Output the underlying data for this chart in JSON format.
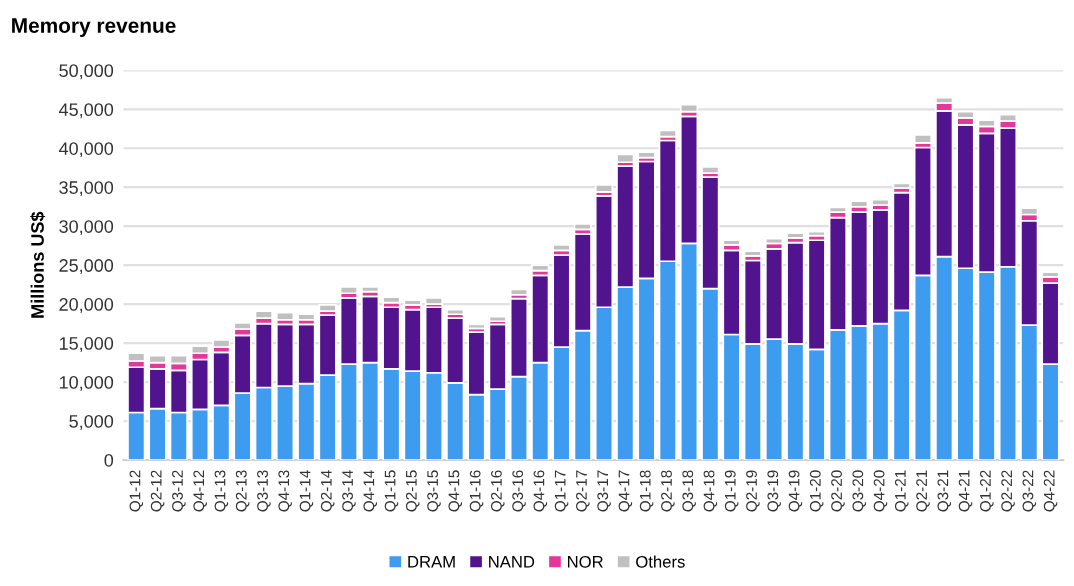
{
  "chart_data": {
    "type": "bar",
    "stacked": true,
    "title": "Memory revenue",
    "ylabel": "Millions US$",
    "categories": [
      "Q1-12",
      "Q2-12",
      "Q3-12",
      "Q4-12",
      "Q1-13",
      "Q2-13",
      "Q3-13",
      "Q4-13",
      "Q1-14",
      "Q2-14",
      "Q3-14",
      "Q4-14",
      "Q1-15",
      "Q2-15",
      "Q3-15",
      "Q4-15",
      "Q1-16",
      "Q2-16",
      "Q3-16",
      "Q4-16",
      "Q1-17",
      "Q2-17",
      "Q3-17",
      "Q4-17",
      "Q1-18",
      "Q2-18",
      "Q3-18",
      "Q4-18",
      "Q1-19",
      "Q2-19",
      "Q3-19",
      "Q4-19",
      "Q1-20",
      "Q2-20",
      "Q3-20",
      "Q4-20",
      "Q1-21",
      "Q2-21",
      "Q3-21",
      "Q4-21",
      "Q1-22",
      "Q2-22",
      "Q3-22",
      "Q4-22"
    ],
    "series": [
      {
        "name": "DRAM",
        "color": "#3d9bf0",
        "values": [
          6100,
          6600,
          6100,
          6500,
          7000,
          8600,
          9300,
          9500,
          9800,
          10900,
          12300,
          12500,
          11700,
          11400,
          11200,
          9900,
          8400,
          9100,
          10700,
          12500,
          14500,
          16600,
          19600,
          22200,
          23300,
          25500,
          27800,
          22000,
          16100,
          14900,
          15500,
          14900,
          14200,
          16700,
          17200,
          17500,
          19200,
          23700,
          26100,
          24600,
          24100,
          24800,
          17300,
          12300
        ]
      },
      {
        "name": "NAND",
        "color": "#52138f",
        "values": [
          5800,
          5100,
          5400,
          6400,
          6800,
          7400,
          8200,
          7900,
          7600,
          7700,
          8500,
          8500,
          7900,
          7900,
          8400,
          8300,
          8000,
          8300,
          10000,
          11200,
          11800,
          12400,
          14300,
          15500,
          15000,
          15500,
          16300,
          14300,
          10800,
          10700,
          11600,
          13000,
          14000,
          14400,
          14600,
          14600,
          15100,
          16400,
          18700,
          18400,
          17800,
          17800,
          13400,
          10400
        ]
      },
      {
        "name": "NOR",
        "color": "#e5369a",
        "values": [
          800,
          800,
          900,
          800,
          700,
          800,
          700,
          600,
          600,
          500,
          600,
          600,
          600,
          600,
          400,
          500,
          500,
          400,
          500,
          600,
          600,
          600,
          500,
          500,
          500,
          500,
          600,
          500,
          700,
          600,
          700,
          600,
          600,
          700,
          700,
          600,
          600,
          600,
          1000,
          900,
          900,
          900,
          800,
          800
        ]
      },
      {
        "name": "Others",
        "color": "#c0c0c0",
        "values": [
          1000,
          900,
          1000,
          900,
          900,
          800,
          900,
          900,
          700,
          800,
          800,
          600,
          700,
          600,
          800,
          600,
          500,
          600,
          700,
          700,
          700,
          700,
          900,
          1000,
          700,
          800,
          900,
          800,
          600,
          600,
          600,
          600,
          500,
          600,
          700,
          700,
          600,
          1000,
          700,
          800,
          800,
          800,
          800,
          600
        ]
      }
    ],
    "ylim": [
      0,
      50000
    ],
    "yticks": [
      0,
      {
        "value": 5000,
        "label": "5,000"
      },
      {
        "value": 10000,
        "label": "10,000"
      },
      {
        "value": 15000,
        "label": "15,000"
      },
      {
        "value": 20000,
        "label": "20,000"
      },
      {
        "value": 25000,
        "label": "25,000"
      },
      {
        "value": 30000,
        "label": "30,000"
      },
      {
        "value": 35000,
        "label": "35,000"
      },
      {
        "value": 40000,
        "label": "40,000"
      },
      {
        "value": 45000,
        "label": "45,000"
      },
      {
        "value": 50000,
        "label": "50,000"
      }
    ],
    "grid": "y",
    "legend": "bottom"
  }
}
